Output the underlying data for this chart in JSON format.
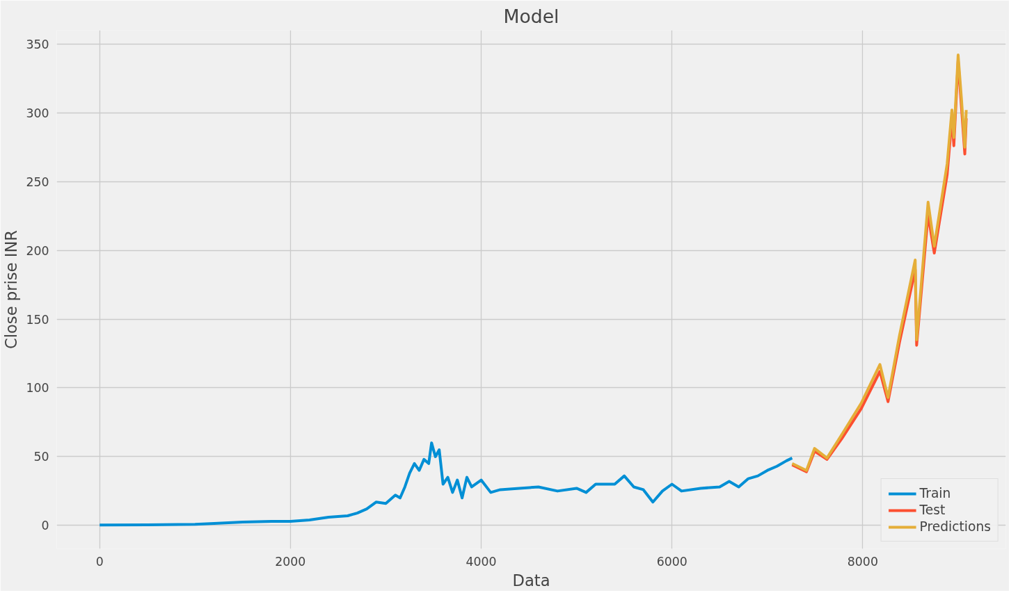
{
  "chart_data": {
    "type": "line",
    "title": "Model",
    "xlabel": "Data",
    "ylabel": "Close prise INR",
    "xlim": [
      -450,
      9500
    ],
    "ylim": [
      -17,
      360
    ],
    "xticks": [
      0,
      2000,
      4000,
      6000,
      8000
    ],
    "yticks": [
      0,
      50,
      100,
      150,
      200,
      250,
      300,
      350
    ],
    "grid": true,
    "legend": "bottom right",
    "line_style": "solid",
    "series": [
      {
        "name": "Train",
        "color": "#008fd5",
        "x": [
          0,
          500,
          1000,
          1200,
          1500,
          1800,
          2000,
          2200,
          2400,
          2600,
          2700,
          2800,
          2900,
          3000,
          3100,
          3150,
          3200,
          3250,
          3300,
          3350,
          3400,
          3450,
          3480,
          3520,
          3560,
          3600,
          3650,
          3700,
          3750,
          3800,
          3850,
          3900,
          4000,
          4100,
          4200,
          4400,
          4600,
          4800,
          5000,
          5100,
          5200,
          5400,
          5500,
          5600,
          5700,
          5800,
          5900,
          6000,
          6100,
          6300,
          6500,
          6600,
          6700,
          6800,
          6900,
          7000,
          7100,
          7200,
          7260
        ],
        "values": [
          0.3,
          0.4,
          0.8,
          1.5,
          2.5,
          3,
          3,
          4,
          6,
          7,
          9,
          12,
          17,
          16,
          22,
          20,
          28,
          38,
          45,
          40,
          48,
          45,
          60,
          50,
          55,
          30,
          35,
          24,
          33,
          20,
          35,
          28,
          33,
          24,
          26,
          27,
          28,
          25,
          27,
          24,
          30,
          30,
          36,
          28,
          26,
          17,
          25,
          30,
          25,
          27,
          28,
          32,
          28,
          34,
          36,
          40,
          43,
          47,
          49
        ]
      },
      {
        "name": "Test",
        "color": "#fc4f30",
        "x": [
          7260,
          7410,
          7495,
          7625,
          7780,
          7985,
          8180,
          8265,
          8385,
          8550,
          8565,
          8685,
          8750,
          8885,
          8935,
          8955,
          9000,
          9035,
          9070,
          9085
        ],
        "values": [
          44,
          39,
          54,
          48,
          63,
          85,
          112,
          90,
          133,
          186,
          131,
          226,
          198,
          255,
          296,
          276,
          338,
          304,
          270,
          296
        ]
      },
      {
        "name": "Predictions",
        "color": "#e5ae38",
        "x": [
          7260,
          7410,
          7495,
          7625,
          7780,
          7985,
          8180,
          8265,
          8385,
          8550,
          8565,
          8685,
          8750,
          8885,
          8935,
          8955,
          9000,
          9035,
          9070,
          9085
        ],
        "values": [
          45,
          40,
          56,
          49,
          66,
          89,
          117,
          93,
          138,
          193,
          135,
          235,
          203,
          263,
          302,
          282,
          342,
          310,
          275,
          302
        ]
      }
    ]
  }
}
